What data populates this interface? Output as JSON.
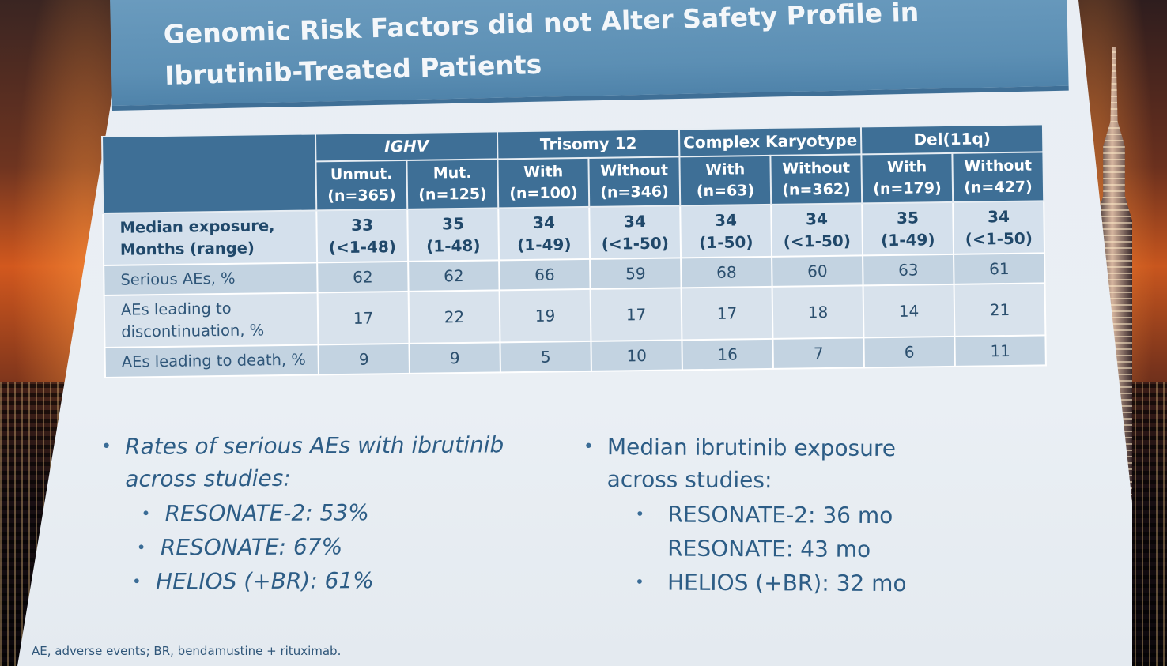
{
  "slide": {
    "title_line1": "Genomic Risk Factors did not Alter Safety Profile in",
    "title_line2": "Ibrutinib-Treated Patients"
  },
  "table": {
    "groups": [
      "IGHV",
      "Trisomy 12",
      "Complex Karyotype",
      "Del(11q)"
    ],
    "subheaders": [
      {
        "label": "Unmut.",
        "n": "(n=365)"
      },
      {
        "label": "Mut.",
        "n": "(n=125)"
      },
      {
        "label": "With",
        "n": "(n=100)"
      },
      {
        "label": "Without",
        "n": "(n=346)"
      },
      {
        "label": "With",
        "n": "(n=63)"
      },
      {
        "label": "Without",
        "n": "(n=362)"
      },
      {
        "label": "With",
        "n": "(n=179)"
      },
      {
        "label": "Without",
        "n": "(n=427)"
      }
    ],
    "rows": [
      {
        "label_line1": "Median exposure,",
        "label_line2": "Months (range)",
        "cells": [
          {
            "v": "33",
            "r": "(<1-48)"
          },
          {
            "v": "35",
            "r": "(1-48)"
          },
          {
            "v": "34",
            "r": "(1-49)"
          },
          {
            "v": "34",
            "r": "(<1-50)"
          },
          {
            "v": "34",
            "r": "(1-50)"
          },
          {
            "v": "34",
            "r": "(<1-50)"
          },
          {
            "v": "35",
            "r": "(1-49)"
          },
          {
            "v": "34",
            "r": "(<1-50)"
          }
        ]
      },
      {
        "label_line1": "Serious AEs, %",
        "label_line2": "",
        "cells": [
          "62",
          "62",
          "66",
          "59",
          "68",
          "60",
          "63",
          "61"
        ]
      },
      {
        "label_line1": "AEs leading to",
        "label_line2": "discontinuation, %",
        "cells": [
          "17",
          "22",
          "19",
          "17",
          "17",
          "18",
          "14",
          "21"
        ]
      },
      {
        "label_line1": "AEs leading to death, %",
        "label_line2": "",
        "cells": [
          "9",
          "9",
          "5",
          "10",
          "16",
          "7",
          "6",
          "11"
        ]
      }
    ]
  },
  "bullets_left": {
    "main_line1": "Rates of serious AEs with ibrutinib",
    "main_line2": "across studies:",
    "subs": [
      "RESONATE-2: 53%",
      "RESONATE: 67%",
      "HELIOS (+BR): 61%"
    ]
  },
  "bullets_right": {
    "main_line1": "Median ibrutinib exposure",
    "main_line2": "across studies:",
    "subs": [
      "RESONATE-2: 36 mo",
      "RESONATE: 43 mo",
      "HELIOS (+BR): 32 mo"
    ]
  },
  "footnote": "AE, adverse events; BR, bendamustine + rituximab.",
  "icons": {
    "bullet": "•"
  }
}
